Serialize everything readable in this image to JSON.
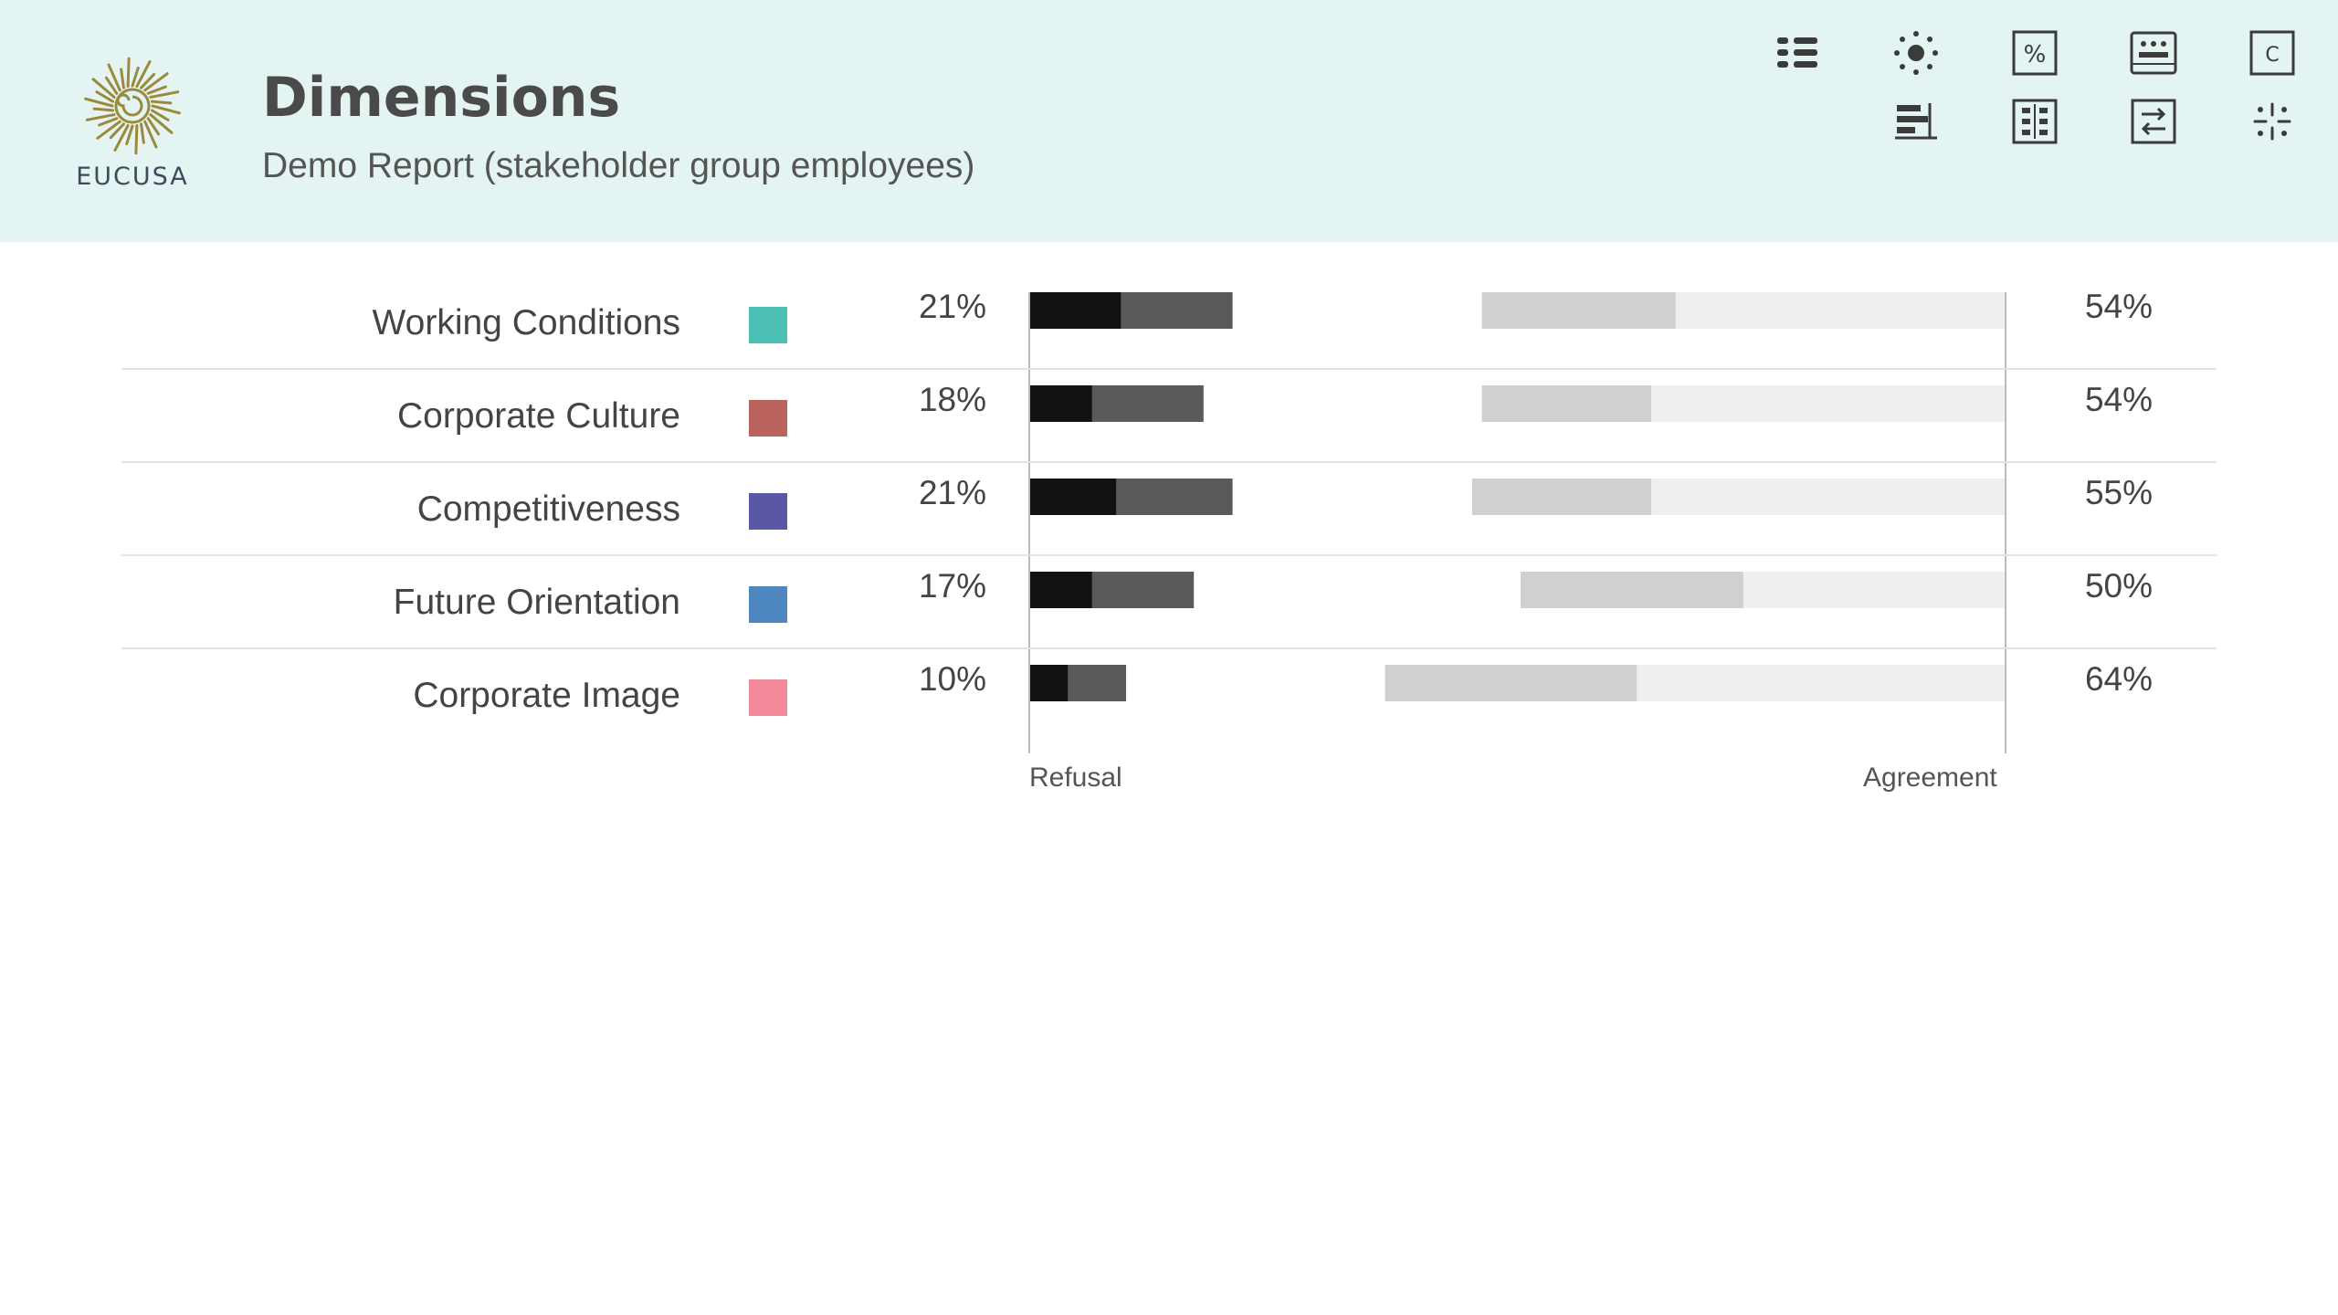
{
  "header": {
    "logo_text": "EUCUSA",
    "title": "Dimensions",
    "subtitle": "Demo Report (stakeholder group employees)"
  },
  "toolbar": {
    "icons": [
      "list-icon",
      "sun-icon",
      "percent-icon",
      "table-icon",
      "c-box-icon",
      "bar-align-icon",
      "grid-icon",
      "swap-icon",
      "sparkle-icon"
    ],
    "percent_symbol": "%",
    "c_symbol": "C"
  },
  "chart_data": {
    "type": "bar",
    "axis_left_label": "Refusal",
    "axis_right_label": "Agreement",
    "rows": [
      {
        "label": "Working Conditions",
        "color": "#4cc0b4",
        "refusal": 21,
        "refusal_strong": 9.5,
        "agreement": 54,
        "agreement_strong": 20
      },
      {
        "label": "Corporate Culture",
        "color": "#b9635c",
        "refusal": 18,
        "refusal_strong": 6.5,
        "agreement": 54,
        "agreement_strong": 17.5
      },
      {
        "label": "Competitiveness",
        "color": "#5a57a6",
        "refusal": 21,
        "refusal_strong": 9,
        "agreement": 55,
        "agreement_strong": 18.5
      },
      {
        "label": "Future Orientation",
        "color": "#4e86c0",
        "refusal": 17,
        "refusal_strong": 6.5,
        "agreement": 50,
        "agreement_strong": 23
      },
      {
        "label": "Corporate Image",
        "color": "#f2899a",
        "refusal": 10,
        "refusal_strong": 4,
        "agreement": 64,
        "agreement_strong": 26
      }
    ]
  }
}
